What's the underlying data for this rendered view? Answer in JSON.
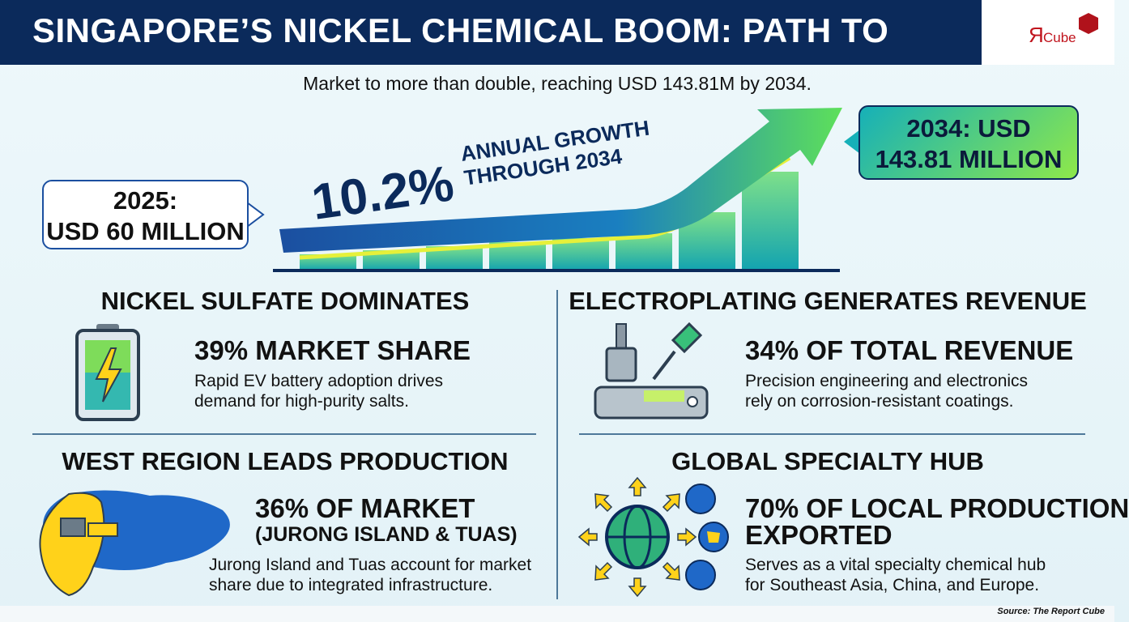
{
  "header": {
    "title": "SINGAPORE’S NICKEL CHEMICAL BOOM: PATH TO",
    "logo": {
      "mark": "Я",
      "name": "Cube"
    },
    "subtitle": "Market to more than double, reaching USD 143.81M by 2034."
  },
  "hero": {
    "start_label": [
      "2025:",
      "USD 60 MILLION"
    ],
    "growth_value": "10.2%",
    "growth_label": [
      "ANNUAL GROWTH",
      "THROUGH 2034"
    ],
    "end_label": [
      "2034: USD",
      "143.81 MILLION"
    ]
  },
  "sections": [
    {
      "heading": "NICKEL SULFATE DOMINATES",
      "stat": [
        "39% MARKET SHARE"
      ],
      "description": [
        "Rapid EV battery adoption drives",
        "demand for high-purity salts."
      ]
    },
    {
      "heading": "ELECTROPLATING GENERATES REVENUE",
      "stat": [
        "34% OF TOTAL REVENUE"
      ],
      "description": [
        "Precision engineering and electronics",
        "rely on corrosion-resistant coatings."
      ]
    },
    {
      "heading": "WEST REGION LEADS PRODUCTION",
      "stat": [
        "36% OF MARKET",
        "(JURONG ISLAND & TUAS)"
      ],
      "description": [
        "Jurong Island and Tuas account for market",
        "share due to integrated infrastructure."
      ]
    },
    {
      "heading": "GLOBAL SPECIALTY HUB",
      "stat": [
        "70% OF LOCAL PRODUCTION",
        "EXPORTED"
      ],
      "description": [
        "Serves as a vital specialty chemical hub",
        "for Southeast Asia, China, and Europe."
      ]
    }
  ],
  "source": "Source: The Report Cube"
}
